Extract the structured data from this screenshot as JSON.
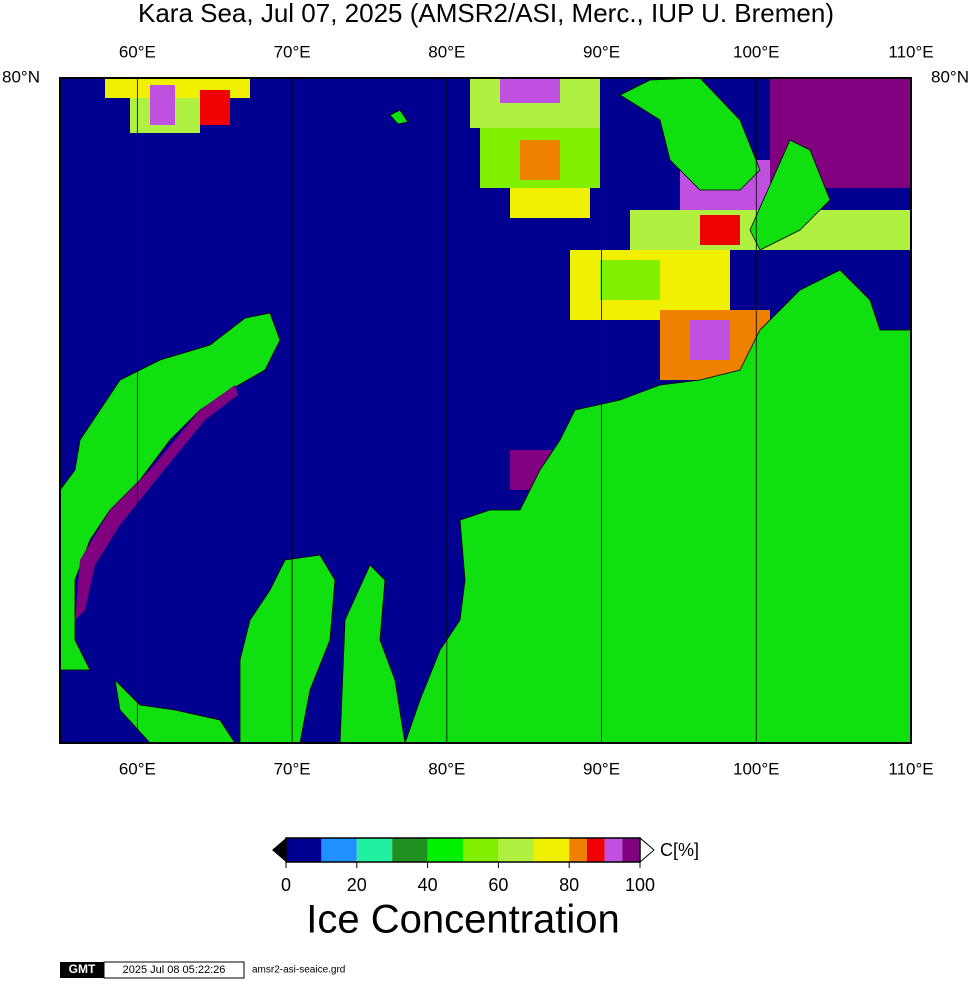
{
  "title": "Kara Sea, Jul 07, 2025 (AMSR2/ASI, Merc., IUP U. Bremen)",
  "map": {
    "lon_range": [
      55,
      110
    ],
    "lon_ticks": [
      {
        "value": 60,
        "label": "60°E"
      },
      {
        "value": 70,
        "label": "70°E"
      },
      {
        "value": 80,
        "label": "80°E"
      },
      {
        "value": 90,
        "label": "90°E"
      },
      {
        "value": 100,
        "label": "100°E"
      },
      {
        "value": 110,
        "label": "110°E"
      }
    ],
    "lat_label": "80°N"
  },
  "colorbar": {
    "range": [
      0,
      100
    ],
    "bounds": [
      0,
      10,
      20,
      30,
      40,
      50,
      60,
      70,
      80,
      85,
      90,
      95,
      100
    ],
    "colors": [
      "#000090",
      "#2090ff",
      "#20f0a0",
      "#209020",
      "#00f000",
      "#80f000",
      "#b0f040",
      "#f0f000",
      "#f08000",
      "#f00000",
      "#c050e0",
      "#800080"
    ],
    "ticks": [
      0,
      20,
      40,
      60,
      80,
      100
    ],
    "unit": "C[%]",
    "title": "Ice Concentration"
  },
  "footer": {
    "logo": "GMT",
    "timestamp": "2025 Jul 08 05:22:26",
    "file": "amsr2-asi-seaice.grd"
  }
}
